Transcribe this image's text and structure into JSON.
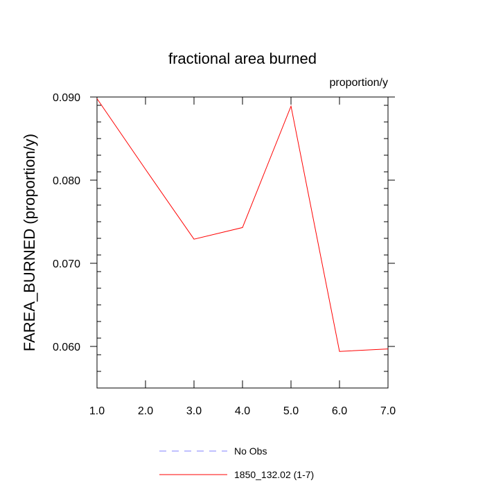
{
  "chart_data": {
    "type": "line",
    "title": "fractional area burned",
    "units_label": "proportion/y",
    "ylabel": "FAREA_BURNED  (proportion/y)",
    "xlabel": "",
    "xlim": [
      1.0,
      7.0
    ],
    "ylim": [
      0.055,
      0.09
    ],
    "x_ticks": [
      1.0,
      2.0,
      3.0,
      4.0,
      5.0,
      6.0,
      7.0
    ],
    "x_tick_labels": [
      "1.0",
      "2.0",
      "3.0",
      "4.0",
      "5.0",
      "6.0",
      "7.0"
    ],
    "y_ticks": [
      0.06,
      0.07,
      0.08,
      0.09
    ],
    "y_tick_labels": [
      "0.060",
      "0.070",
      "0.080",
      "0.090"
    ],
    "y_minor_step": 0.002,
    "grid": false,
    "legend_position": "bottom-center",
    "series": [
      {
        "name": "1850_132.02 (1-7)",
        "color": "#ff0000",
        "dash": "solid",
        "x": [
          1,
          2,
          3,
          4,
          5,
          6,
          7
        ],
        "y": [
          0.0898,
          0.0813,
          0.0729,
          0.0743,
          0.0889,
          0.0594,
          0.0597
        ]
      }
    ],
    "legend": [
      {
        "label": "No Obs",
        "color": "#8080ff",
        "dash": "dashed"
      },
      {
        "label": "1850_132.02 (1-7)",
        "color": "#ff0000",
        "dash": "solid"
      }
    ]
  }
}
